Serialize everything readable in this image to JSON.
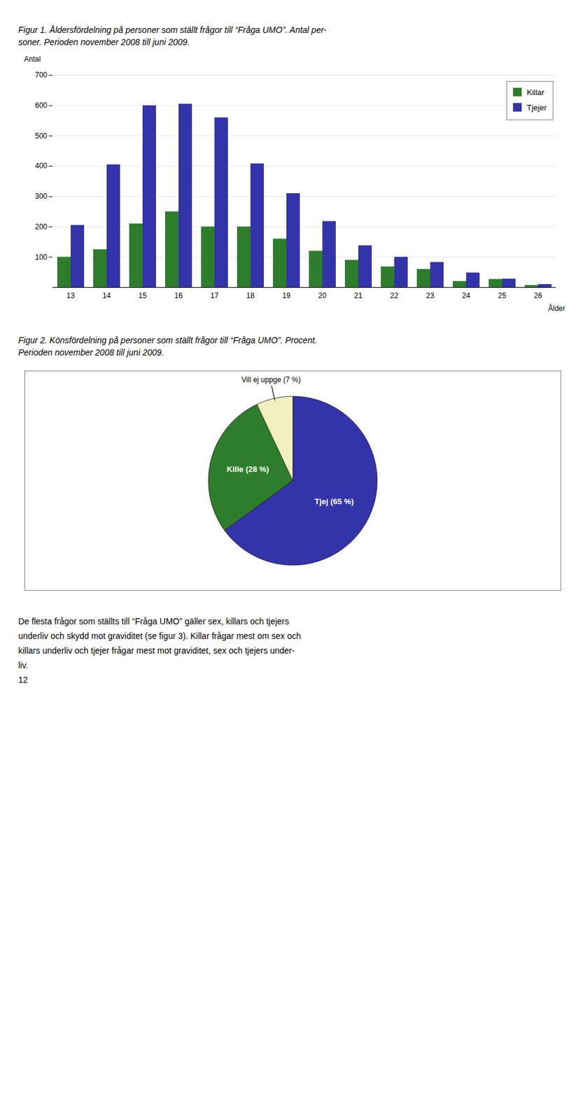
{
  "chart_data": [
    {
      "type": "bar",
      "title": "Figur 1. Åldersfördelning på personer som ställt frågor till “Fråga UMO”. Antal per-\nsoner. Perioden november 2008 till juni 2009.",
      "categories": [
        "13",
        "14",
        "15",
        "16",
        "17",
        "18",
        "19",
        "20",
        "21",
        "22",
        "23",
        "24",
        "25",
        "26"
      ],
      "series": [
        {
          "name": "Killar",
          "color": "#2d7d2d",
          "values": [
            100,
            125,
            210,
            250,
            200,
            200,
            160,
            120,
            90,
            68,
            60,
            20,
            27,
            7
          ]
        },
        {
          "name": "Tjejer",
          "color": "#3333aa",
          "values": [
            205,
            405,
            600,
            605,
            560,
            408,
            310,
            218,
            138,
            100,
            83,
            48,
            28,
            10
          ]
        }
      ],
      "xlabel": "Ålder",
      "ylabel": "Antal",
      "ylim": [
        0,
        700
      ],
      "yticks": [
        100,
        200,
        300,
        400,
        500,
        600,
        700
      ],
      "grid": true,
      "legend": "upper right"
    },
    {
      "type": "pie",
      "title": "Figur 2. Könsfördelning på personer som ställt frågor till “Fråga UMO”. Procent.\nPerioden november 2008 till juni 2009.",
      "categories": [
        "Tjej (65 %)",
        "Kille (28 %)",
        "Vill ej uppge (7 %)"
      ],
      "values": [
        65,
        28,
        7
      ],
      "colors": [
        "#3333aa",
        "#2d7d2d",
        "#f0f0c0"
      ],
      "annotations": [
        "De flesta frågor som ställts till “Fråga UMO” gäller sex, killars och tjejers",
        "underliv och skydd mot graviditet (se figur 3). Killar frågar mest om sex och",
        "killars underliv och tjejer frågar mest mot graviditet, sex och tjejers under-",
        "liv.",
        "12"
      ]
    }
  ]
}
